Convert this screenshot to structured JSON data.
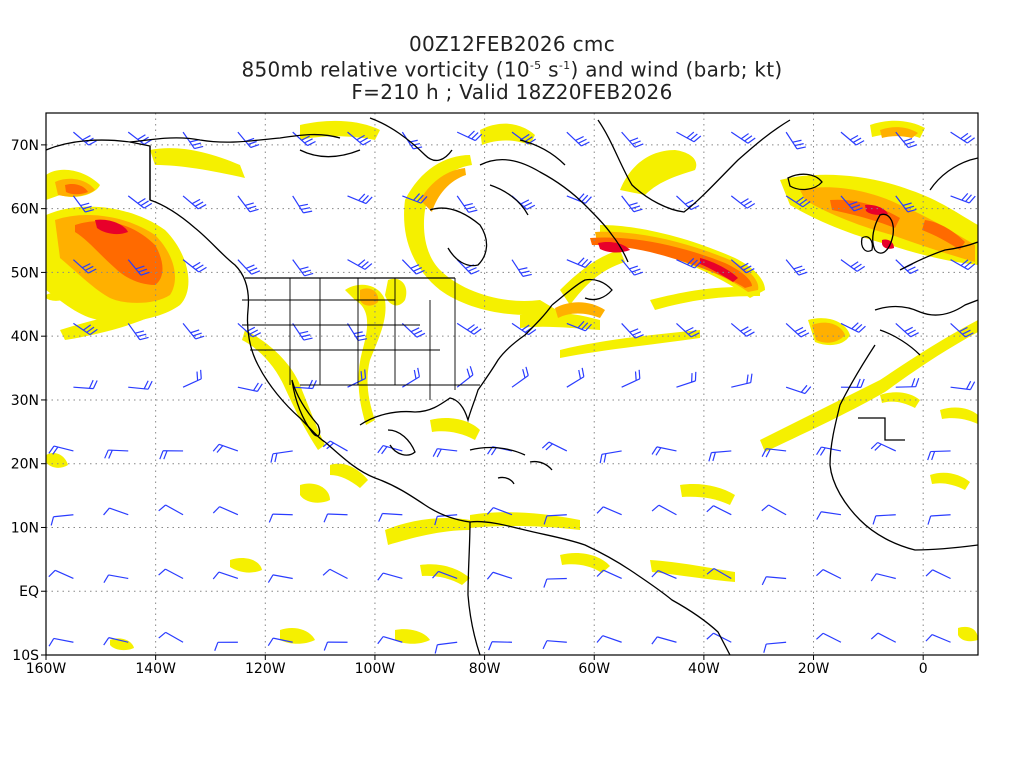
{
  "title": {
    "line1": "00Z12FEB2026 cmc",
    "line2_prefix": "850mb relative vorticity (10",
    "line2_exp1": "-5",
    "line2_mid": " s",
    "line2_exp2": "-1",
    "line2_suffix": ") and wind (barb; kt)",
    "line3": "F=210 h ; Valid 18Z20FEB2026"
  },
  "axes": {
    "lon_labels": [
      "160W",
      "140W",
      "120W",
      "100W",
      "80W",
      "60W",
      "40W",
      "20W",
      "0"
    ],
    "lat_labels": [
      "70N",
      "60N",
      "50N",
      "40N",
      "30N",
      "20N",
      "10N",
      "EQ",
      "10S"
    ],
    "lon_range": [
      -160,
      10
    ],
    "lat_range": [
      -10,
      75
    ],
    "grid": "dotted"
  },
  "colors": {
    "vorticity_low": "#f5f000",
    "vorticity_mid": "#ffb000",
    "vorticity_high": "#ff6a00",
    "vorticity_max": "#e8002a",
    "coast": "#000000",
    "barb": "#2a3cff"
  },
  "features": {
    "vorticity_bands": "Atlantic jet band from Labrador Sea to central Atlantic; NE Pacific / Gulf of Alaska swirl; Hudson Bay arc; European maxima near British Isles",
    "wind_barbs": "Blue barbs plotted on regular lat/lon grid"
  }
}
